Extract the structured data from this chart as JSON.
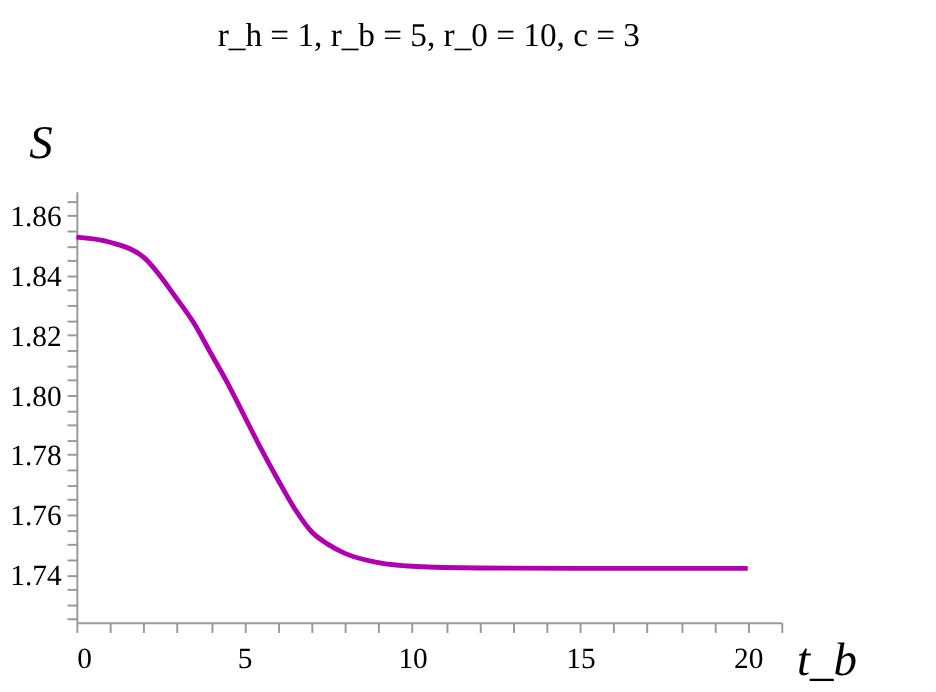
{
  "chart_data": {
    "type": "line",
    "title": "r_h = 1, r_b = 5, r_0 = 10, c = 3",
    "xlabel": "t_b",
    "ylabel": "S",
    "x": [
      0,
      1,
      2,
      3,
      3.5,
      4,
      4.5,
      5,
      5.5,
      6,
      6.5,
      7,
      7.5,
      8,
      9,
      10,
      12,
      15,
      20
    ],
    "series": [
      {
        "color": "#b000b0",
        "values": [
          1.8527,
          1.851,
          1.846,
          1.832,
          1.824,
          1.814,
          1.804,
          1.793,
          1.782,
          1.7717,
          1.762,
          1.7543,
          1.75,
          1.747,
          1.7439,
          1.7427,
          1.7421,
          1.742,
          1.742
        ]
      }
    ],
    "xlim": [
      0,
      21
    ],
    "ylim": [
      1.724,
      1.868
    ],
    "xticks": [
      0,
      {
        "value": 1,
        "label": null
      },
      {
        "value": 2,
        "label": null
      },
      {
        "value": 3,
        "label": null
      },
      {
        "value": 4,
        "label": null
      },
      5,
      {
        "value": 6,
        "label": null
      },
      {
        "value": 7,
        "label": null
      },
      {
        "value": 8,
        "label": null
      },
      {
        "value": 9,
        "label": null
      },
      10,
      {
        "value": 11,
        "label": null
      },
      {
        "value": 12,
        "label": null
      },
      {
        "value": 13,
        "label": null
      },
      {
        "value": 14,
        "label": null
      },
      15,
      {
        "value": 16,
        "label": null
      },
      {
        "value": 17,
        "label": null
      },
      {
        "value": 18,
        "label": null
      },
      {
        "value": 19,
        "label": null
      },
      20,
      {
        "value": 21,
        "label": null
      }
    ],
    "yticks": [
      {
        "value": 1.725,
        "label": null
      },
      {
        "value": 1.73,
        "label": null
      },
      {
        "value": 1.735,
        "label": null
      },
      {
        "value": 1.74,
        "label": "1.74"
      },
      {
        "value": 1.745,
        "label": null
      },
      {
        "value": 1.75,
        "label": null
      },
      {
        "value": 1.755,
        "label": null
      },
      {
        "value": 1.76,
        "label": "1.76"
      },
      {
        "value": 1.765,
        "label": null
      },
      {
        "value": 1.77,
        "label": null
      },
      {
        "value": 1.775,
        "label": null
      },
      {
        "value": 1.78,
        "label": "1.78"
      },
      {
        "value": 1.785,
        "label": null
      },
      {
        "value": 1.79,
        "label": null
      },
      {
        "value": 1.795,
        "label": null
      },
      {
        "value": 1.8,
        "label": "1.80"
      },
      {
        "value": 1.805,
        "label": null
      },
      {
        "value": 1.81,
        "label": null
      },
      {
        "value": 1.815,
        "label": null
      },
      {
        "value": 1.82,
        "label": "1.82"
      },
      {
        "value": 1.825,
        "label": null
      },
      {
        "value": 1.83,
        "label": null
      },
      {
        "value": 1.835,
        "label": null
      },
      {
        "value": 1.84,
        "label": "1.84"
      },
      {
        "value": 1.845,
        "label": null
      },
      {
        "value": 1.85,
        "label": null
      },
      {
        "value": 1.855,
        "label": null
      },
      {
        "value": 1.86,
        "label": "1.86"
      },
      {
        "value": 1.865,
        "label": null
      }
    ],
    "grid": false,
    "marker": "none",
    "line_style": "solid"
  }
}
